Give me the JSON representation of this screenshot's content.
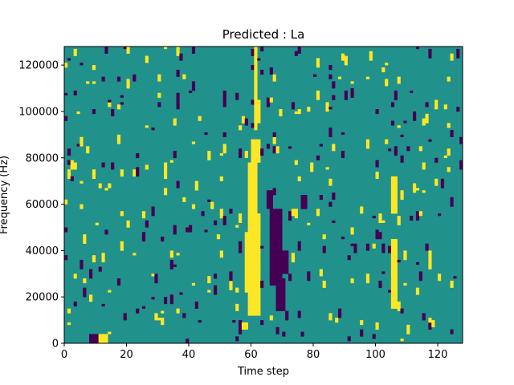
{
  "chart_data": {
    "type": "heatmap",
    "title": "Predicted : La",
    "xlabel": "Time step",
    "ylabel": "Frequency (Hz)",
    "xlim": [
      0,
      128
    ],
    "ylim": [
      0,
      128000
    ],
    "xticks": [
      0,
      20,
      40,
      60,
      80,
      100,
      120
    ],
    "yticks": [
      0,
      20000,
      40000,
      60000,
      80000,
      100000,
      120000
    ],
    "grid": false,
    "legend": "none",
    "colorscale": {
      "low": "#440154",
      "mid": "#21918c",
      "high": "#fde725"
    },
    "background_value": "mid",
    "n_time_steps": 128,
    "n_freq_bins": 128,
    "high_regions": [
      {
        "t": [
          59,
          63
        ],
        "f": [
          48000,
          56000
        ]
      },
      {
        "t": [
          58,
          63
        ],
        "f": [
          22000,
          48000
        ]
      },
      {
        "t": [
          59,
          63
        ],
        "f": [
          12000,
          22000
        ]
      },
      {
        "t": [
          59,
          62
        ],
        "f": [
          56000,
          78000
        ]
      },
      {
        "t": [
          60,
          63
        ],
        "f": [
          78000,
          88000
        ]
      },
      {
        "t": [
          61,
          63
        ],
        "f": [
          95000,
          105000
        ]
      },
      {
        "t": [
          61,
          62
        ],
        "f": [
          105000,
          128000
        ]
      },
      {
        "t": [
          105,
          107
        ],
        "f": [
          15000,
          45000
        ]
      },
      {
        "t": [
          105,
          107
        ],
        "f": [
          56000,
          72000
        ]
      },
      {
        "t": [
          11,
          14
        ],
        "f": [
          0,
          4000
        ]
      },
      {
        "t": [
          57,
          59
        ],
        "f": [
          6000,
          9000
        ]
      }
    ],
    "low_regions": [
      {
        "t": [
          66,
          70
        ],
        "f": [
          25000,
          58000
        ]
      },
      {
        "t": [
          68,
          71
        ],
        "f": [
          14000,
          28000
        ]
      },
      {
        "t": [
          8,
          11
        ],
        "f": [
          0,
          3500
        ]
      },
      {
        "t": [
          65,
          67
        ],
        "f": [
          58000,
          66000
        ]
      },
      {
        "t": [
          70,
          72
        ],
        "f": [
          30000,
          40000
        ]
      },
      {
        "t": [
          76,
          78
        ],
        "f": [
          58000,
          64000
        ]
      }
    ],
    "scatter_high_count": 170,
    "scatter_low_count": 190
  }
}
